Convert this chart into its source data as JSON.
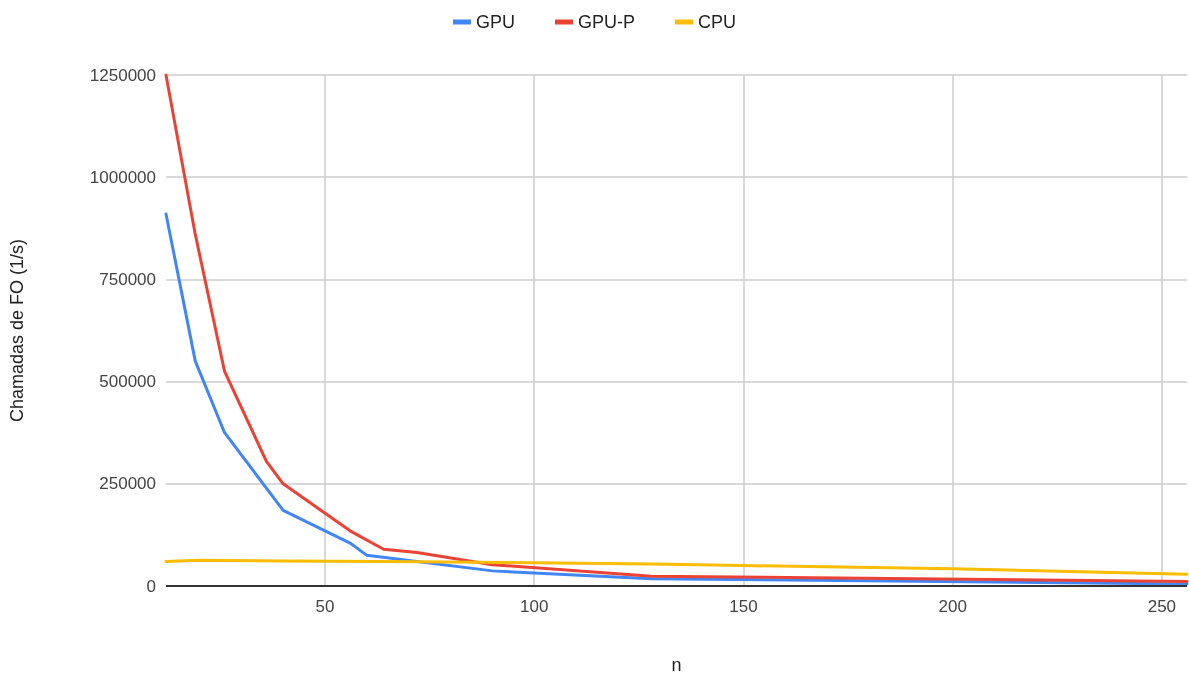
{
  "chart_data": {
    "type": "line",
    "xlabel": "n",
    "ylabel": "Chamadas de FO (1/s)",
    "xlim": [
      12,
      256
    ],
    "xticks": [
      50,
      100,
      150,
      200,
      250
    ],
    "ylim": [
      0,
      1250000
    ],
    "yticks": [
      0,
      250000,
      500000,
      750000,
      1000000,
      1250000
    ],
    "grid": true,
    "legend": "top",
    "marker": "none",
    "line_style": "solid",
    "series": [
      {
        "name": "GPU",
        "color": "#4285f4",
        "x": [
          12,
          19,
          26,
          40,
          56,
          60,
          90,
          128,
          256
        ],
        "values": [
          910000,
          550000,
          375000,
          185000,
          105000,
          75000,
          37000,
          18000,
          5000
        ]
      },
      {
        "name": "GPU-P",
        "color": "#ea4335",
        "x": [
          12,
          19,
          26,
          36,
          40,
          56,
          64,
          72,
          90,
          128,
          256
        ],
        "values": [
          1250000,
          860000,
          525000,
          305000,
          250000,
          135000,
          90000,
          82000,
          52000,
          24000,
          11000
        ]
      },
      {
        "name": "CPU",
        "color": "#fbbc04",
        "x": [
          12,
          20,
          40,
          64,
          100,
          128,
          150,
          200,
          256
        ],
        "values": [
          60000,
          63000,
          61000,
          60000,
          57000,
          54000,
          50000,
          42000,
          29000
        ]
      }
    ]
  }
}
